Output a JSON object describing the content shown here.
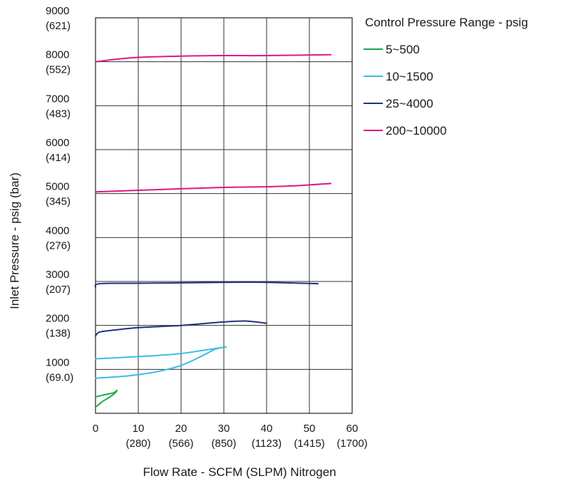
{
  "chart_data": {
    "type": "line",
    "xlabel": "Flow Rate - SCFM (SLPM) Nitrogen",
    "ylabel": "Inlet Pressure - psig (bar)",
    "xlim": [
      0,
      60
    ],
    "ylim": [
      0,
      9000
    ],
    "grid": true,
    "legend_title": "Control Pressure Range - psig",
    "legend_position": "right",
    "x_ticks": [
      {
        "value": 0,
        "label": "0",
        "sub": ""
      },
      {
        "value": 10,
        "label": "10",
        "sub": "(280)"
      },
      {
        "value": 20,
        "label": "20",
        "sub": "(566)"
      },
      {
        "value": 30,
        "label": "30",
        "sub": "(850)"
      },
      {
        "value": 40,
        "label": "40",
        "sub": "(1123)"
      },
      {
        "value": 50,
        "label": "50",
        "sub": "(1415)"
      },
      {
        "value": 60,
        "label": "60",
        "sub": "(1700)"
      }
    ],
    "y_ticks": [
      {
        "value": 1000,
        "label": "1000",
        "sub": "(69.0)"
      },
      {
        "value": 2000,
        "label": "2000",
        "sub": "(138)"
      },
      {
        "value": 3000,
        "label": "3000",
        "sub": "(207)"
      },
      {
        "value": 4000,
        "label": "4000",
        "sub": "(276)"
      },
      {
        "value": 5000,
        "label": "5000",
        "sub": "(345)"
      },
      {
        "value": 6000,
        "label": "6000",
        "sub": "(414)"
      },
      {
        "value": 7000,
        "label": "7000",
        "sub": "(483)"
      },
      {
        "value": 8000,
        "label": "8000",
        "sub": "(552)"
      },
      {
        "value": 9000,
        "label": "9000",
        "sub": "(621)"
      }
    ],
    "series": [
      {
        "name": "5~500",
        "color": "#1aaa4a",
        "curves": [
          [
            [
              0.3,
              160
            ],
            [
              1.5,
              260
            ],
            [
              3,
              350
            ],
            [
              4.2,
              430
            ],
            [
              5,
              510
            ]
          ],
          [
            [
              0.3,
              380
            ],
            [
              1.5,
              410
            ],
            [
              3,
              440
            ],
            [
              4.3,
              470
            ],
            [
              5,
              520
            ]
          ]
        ]
      },
      {
        "name": "10~1500",
        "color": "#3bbde3",
        "curves": [
          [
            [
              0,
              800
            ],
            [
              5,
              830
            ],
            [
              10,
              880
            ],
            [
              15,
              960
            ],
            [
              20,
              1090
            ],
            [
              25,
              1310
            ],
            [
              28,
              1460
            ],
            [
              30.5,
              1510
            ]
          ],
          [
            [
              0,
              1240
            ],
            [
              5,
              1265
            ],
            [
              10,
              1290
            ],
            [
              15,
              1320
            ],
            [
              20,
              1360
            ],
            [
              25,
              1430
            ],
            [
              30.5,
              1510
            ]
          ]
        ]
      },
      {
        "name": "25~4000",
        "color": "#26327a",
        "curves": [
          [
            [
              0,
              1760
            ],
            [
              1,
              1850
            ],
            [
              5,
              1900
            ],
            [
              10,
              1950
            ],
            [
              15,
              1975
            ],
            [
              20,
              2000
            ],
            [
              25,
              2040
            ],
            [
              30,
              2080
            ],
            [
              35,
              2100
            ],
            [
              40,
              2050
            ]
          ],
          [
            [
              0,
              2870
            ],
            [
              1,
              2950
            ],
            [
              10,
              2960
            ],
            [
              20,
              2970
            ],
            [
              30,
              2980
            ],
            [
              40,
              2980
            ],
            [
              52,
              2950
            ]
          ]
        ]
      },
      {
        "name": "200~10000",
        "color": "#e0197d",
        "curves": [
          [
            [
              0,
              5040
            ],
            [
              10,
              5075
            ],
            [
              20,
              5110
            ],
            [
              30,
              5140
            ],
            [
              40,
              5155
            ],
            [
              47,
              5180
            ],
            [
              55,
              5230
            ]
          ],
          [
            [
              0,
              8000
            ],
            [
              5,
              8060
            ],
            [
              10,
              8100
            ],
            [
              20,
              8130
            ],
            [
              30,
              8140
            ],
            [
              40,
              8140
            ],
            [
              55,
              8160
            ]
          ]
        ]
      }
    ]
  }
}
